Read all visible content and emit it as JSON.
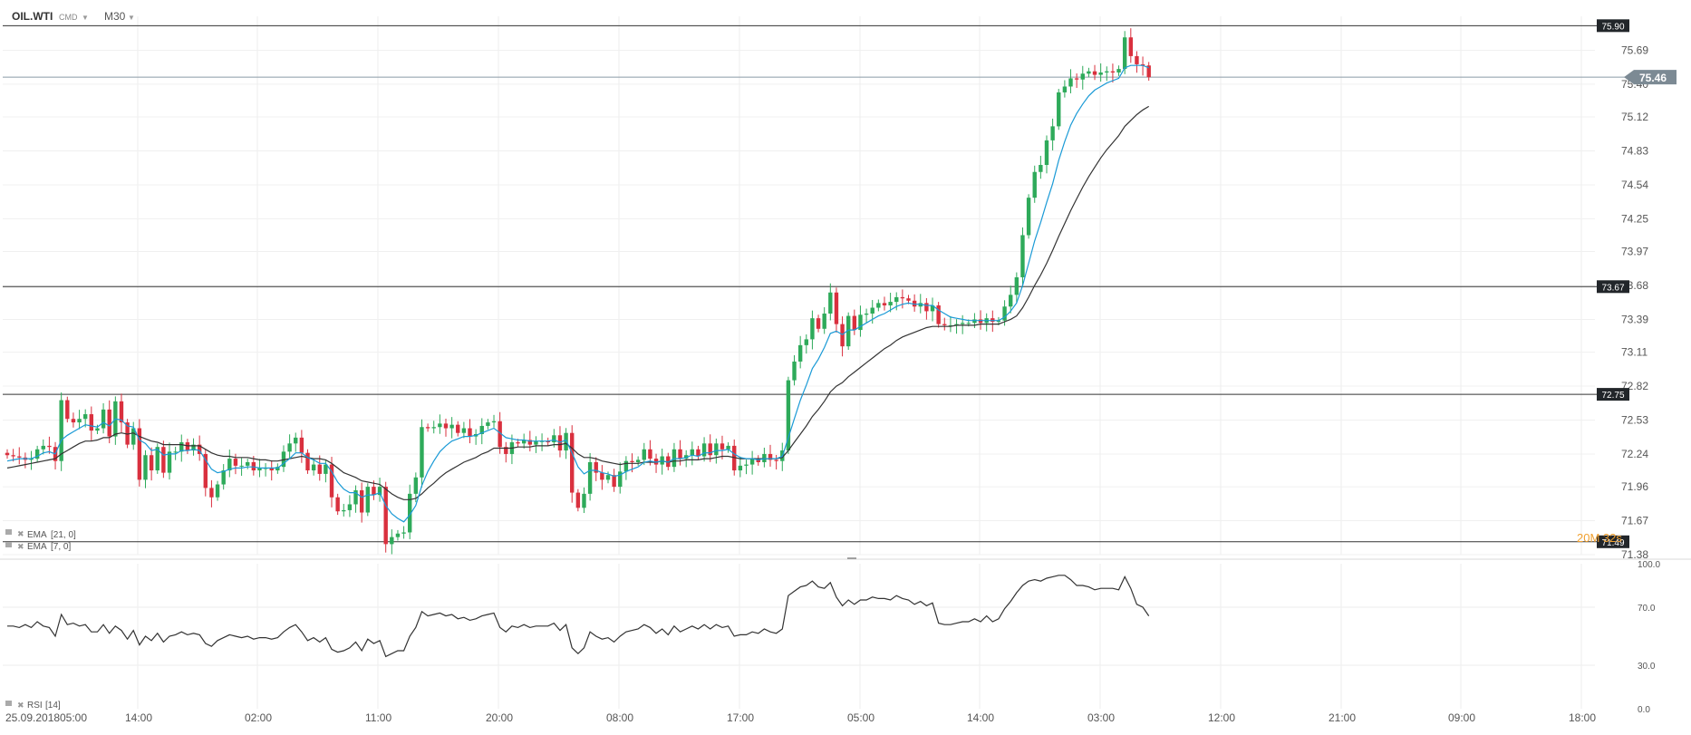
{
  "toolbar": {
    "symbol": "OIL.WTI",
    "instrument_type": "CMD",
    "timeframe": "M30"
  },
  "price_scale": {
    "ticks": [
      "75.69",
      "75.40",
      "75.12",
      "74.83",
      "74.54",
      "74.25",
      "73.97",
      "73.68",
      "73.39",
      "73.11",
      "72.82",
      "72.53",
      "72.24",
      "71.96",
      "71.67",
      "71.38"
    ],
    "min": 71.38,
    "max": 75.98
  },
  "levels": [
    {
      "value": 75.9,
      "label": "75.90"
    },
    {
      "value": 73.67,
      "label": "73.67"
    },
    {
      "value": 72.75,
      "label": "72.75"
    },
    {
      "value": 71.49,
      "label": "71.49"
    }
  ],
  "current_price": {
    "value": 75.46,
    "label": "75.46"
  },
  "countdown": "20M 32s",
  "indicators": [
    {
      "label": "EMA",
      "params": "[21, 0]",
      "color": "#333333"
    },
    {
      "label": "EMA",
      "params": "[7, 0]",
      "color": "#1a9ad6"
    }
  ],
  "rsi": {
    "label": "RSI",
    "params": "[14]",
    "ticks": [
      "100.0",
      "70.0",
      "30.0",
      "0.0"
    ]
  },
  "x_axis": {
    "labels": [
      "25.09.2018",
      "05:00",
      "14:00",
      "02:00",
      "11:00",
      "20:00",
      "08:00",
      "17:00",
      "05:00",
      "14:00",
      "03:00",
      "12:00",
      "21:00",
      "09:00",
      "18:00"
    ]
  },
  "colors": {
    "up": "#2eaa5a",
    "down": "#d9303e",
    "ema21": "#333333",
    "ema7": "#1a9ad6",
    "countdown": "#f0a030"
  },
  "chart_data": {
    "type": "candlestick",
    "ylim": [
      71.38,
      75.98
    ],
    "rsi_ylim": [
      0,
      100
    ],
    "closes": [
      72.23,
      72.22,
      72.21,
      72.19,
      72.2,
      72.28,
      72.31,
      72.3,
      72.18,
      72.7,
      72.54,
      72.51,
      72.54,
      72.58,
      72.44,
      72.46,
      72.62,
      72.39,
      72.69,
      72.51,
      72.32,
      72.46,
      72.02,
      72.23,
      72.1,
      72.3,
      72.08,
      72.26,
      72.26,
      72.34,
      72.27,
      72.32,
      72.24,
      71.95,
      71.87,
      71.98,
      72.1,
      72.2,
      72.14,
      72.14,
      72.17,
      72.1,
      72.12,
      72.12,
      72.1,
      72.13,
      72.26,
      72.33,
      72.38,
      72.25,
      72.1,
      72.15,
      72.07,
      72.15,
      71.87,
      71.75,
      71.76,
      71.81,
      71.93,
      71.74,
      71.96,
      71.89,
      71.96,
      71.47,
      71.53,
      71.56,
      71.57,
      71.9,
      72.04,
      72.47,
      72.46,
      72.47,
      72.5,
      72.46,
      72.49,
      72.42,
      72.46,
      72.39,
      72.41,
      72.48,
      72.51,
      72.52,
      72.3,
      72.24,
      72.34,
      72.33,
      72.36,
      72.32,
      72.35,
      72.35,
      72.34,
      72.4,
      72.27,
      72.42,
      71.91,
      71.78,
      71.9,
      72.17,
      72.08,
      72.02,
      72.06,
      71.96,
      72.09,
      72.18,
      72.17,
      72.19,
      72.28,
      72.2,
      72.15,
      72.22,
      72.13,
      72.28,
      72.2,
      72.23,
      72.28,
      72.22,
      72.33,
      72.23,
      72.33,
      72.28,
      72.31,
      72.1,
      72.14,
      72.15,
      72.2,
      72.17,
      72.24,
      72.19,
      72.18,
      72.27,
      72.87,
      73.03,
      73.17,
      73.22,
      73.4,
      73.31,
      73.44,
      73.62,
      73.35,
      73.16,
      73.42,
      73.3,
      73.43,
      73.44,
      73.49,
      73.53,
      73.51,
      73.54,
      73.58,
      73.57,
      73.55,
      73.5,
      73.53,
      73.46,
      73.51,
      73.35,
      73.34,
      73.34,
      73.35,
      73.36,
      73.36,
      73.39,
      73.36,
      73.4,
      73.37,
      73.38,
      73.5,
      73.6,
      73.75,
      74.11,
      74.43,
      74.65,
      74.71,
      74.92,
      75.04,
      75.33,
      75.38,
      75.45,
      75.44,
      75.49,
      75.51,
      75.48,
      75.5,
      75.51,
      75.5,
      75.53,
      75.8,
      75.64,
      75.57,
      75.56,
      75.46
    ],
    "ema21": [
      72.12,
      72.13,
      72.14,
      72.15,
      72.16,
      72.17,
      72.18,
      72.19,
      72.2,
      72.24,
      72.27,
      72.3,
      72.33,
      72.35,
      72.35,
      72.36,
      72.38,
      72.38,
      72.41,
      72.42,
      72.41,
      72.42,
      72.39,
      72.37,
      72.35,
      72.34,
      72.32,
      72.32,
      72.32,
      72.32,
      72.31,
      72.31,
      72.31,
      72.28,
      72.25,
      72.23,
      72.22,
      72.22,
      72.21,
      72.21,
      72.21,
      72.2,
      72.19,
      72.19,
      72.18,
      72.18,
      72.19,
      72.2,
      72.21,
      72.22,
      72.21,
      72.2,
      72.2,
      72.19,
      72.16,
      72.12,
      72.08,
      72.06,
      72.04,
      72.01,
      72.0,
      71.99,
      71.98,
      71.94,
      71.9,
      71.87,
      71.85,
      71.85,
      71.86,
      71.9,
      71.95,
      71.99,
      72.04,
      72.08,
      72.11,
      72.14,
      72.17,
      72.19,
      72.21,
      72.24,
      72.26,
      72.29,
      72.29,
      72.29,
      72.29,
      72.3,
      72.3,
      72.3,
      72.31,
      72.31,
      72.31,
      72.32,
      72.32,
      72.33,
      72.29,
      72.24,
      72.21,
      72.21,
      72.2,
      72.18,
      72.17,
      72.16,
      72.15,
      72.16,
      72.16,
      72.16,
      72.17,
      72.17,
      72.17,
      72.18,
      72.17,
      72.18,
      72.18,
      72.19,
      72.19,
      72.19,
      72.2,
      72.2,
      72.21,
      72.22,
      72.22,
      72.21,
      72.2,
      72.2,
      72.2,
      72.2,
      72.2,
      72.2,
      72.2,
      72.21,
      72.27,
      72.34,
      72.41,
      72.48,
      72.56,
      72.62,
      72.69,
      72.77,
      72.82,
      72.85,
      72.9,
      72.94,
      72.98,
      73.02,
      73.06,
      73.1,
      73.14,
      73.17,
      73.21,
      73.24,
      73.26,
      73.28,
      73.3,
      73.32,
      73.33,
      73.33,
      73.33,
      73.33,
      73.34,
      73.34,
      73.34,
      73.34,
      73.35,
      73.35,
      73.35,
      73.35,
      73.37,
      73.39,
      73.42,
      73.49,
      73.58,
      73.68,
      73.77,
      73.87,
      73.98,
      74.1,
      74.21,
      74.32,
      74.42,
      74.52,
      74.61,
      74.69,
      74.77,
      74.84,
      74.9,
      74.96,
      75.04,
      75.09,
      75.14,
      75.18,
      75.21
    ],
    "ema7": [
      72.18,
      72.19,
      72.2,
      72.2,
      72.2,
      72.22,
      72.25,
      72.26,
      72.24,
      72.36,
      72.4,
      72.43,
      72.46,
      72.49,
      72.48,
      72.47,
      72.51,
      72.48,
      72.54,
      72.53,
      72.48,
      72.47,
      72.36,
      72.33,
      72.27,
      72.28,
      72.23,
      72.24,
      72.24,
      72.27,
      72.27,
      72.28,
      72.27,
      72.19,
      72.11,
      72.08,
      72.09,
      72.11,
      72.12,
      72.12,
      72.13,
      72.13,
      72.12,
      72.12,
      72.12,
      72.12,
      72.16,
      72.2,
      72.25,
      72.25,
      72.21,
      72.19,
      72.16,
      72.16,
      72.09,
      72.0,
      71.94,
      71.91,
      71.91,
      71.87,
      71.89,
      71.89,
      71.91,
      71.8,
      71.73,
      71.69,
      71.66,
      71.72,
      71.8,
      71.97,
      72.09,
      72.18,
      72.26,
      72.31,
      72.35,
      72.37,
      72.39,
      72.39,
      72.4,
      72.42,
      72.44,
      72.46,
      72.42,
      72.38,
      72.37,
      72.36,
      72.36,
      72.35,
      72.35,
      72.35,
      72.35,
      72.36,
      72.34,
      72.36,
      72.25,
      72.13,
      72.07,
      72.1,
      72.1,
      72.08,
      72.07,
      72.05,
      72.06,
      72.09,
      72.11,
      72.13,
      72.17,
      72.18,
      72.17,
      72.18,
      72.17,
      72.2,
      72.2,
      72.21,
      72.23,
      72.22,
      72.25,
      72.25,
      72.27,
      72.27,
      72.28,
      72.24,
      72.21,
      72.2,
      72.2,
      72.19,
      72.2,
      72.2,
      72.2,
      72.22,
      72.38,
      72.54,
      72.7,
      72.83,
      72.97,
      73.05,
      73.15,
      73.27,
      73.29,
      73.26,
      73.3,
      73.3,
      73.33,
      73.36,
      73.39,
      73.42,
      73.44,
      73.47,
      73.5,
      73.52,
      73.53,
      73.52,
      73.52,
      73.51,
      73.51,
      73.47,
      73.44,
      73.41,
      73.4,
      73.39,
      73.38,
      73.38,
      73.38,
      73.38,
      73.38,
      73.38,
      73.41,
      73.46,
      73.53,
      73.68,
      73.87,
      74.06,
      74.22,
      74.39,
      74.55,
      74.75,
      74.91,
      75.05,
      75.15,
      75.23,
      75.3,
      75.35,
      75.38,
      75.41,
      75.43,
      75.45,
      75.54,
      75.56,
      75.56,
      75.56,
      75.54
    ],
    "rsi": [
      57,
      57,
      56,
      58,
      56,
      60,
      57,
      56,
      50,
      65,
      58,
      59,
      57,
      58,
      53,
      53,
      58,
      52,
      57,
      54,
      48,
      54,
      44,
      50,
      47,
      52,
      46,
      50,
      51,
      53,
      51,
      52,
      51,
      45,
      43,
      47,
      49,
      51,
      50,
      49,
      50,
      48,
      49,
      49,
      48,
      49,
      53,
      56,
      58,
      53,
      47,
      49,
      46,
      49,
      41,
      39,
      40,
      42,
      46,
      40,
      48,
      45,
      47,
      36,
      38,
      40,
      40,
      50,
      56,
      67,
      64,
      65,
      66,
      64,
      65,
      62,
      63,
      61,
      62,
      64,
      65,
      66,
      56,
      53,
      57,
      56,
      58,
      56,
      57,
      57,
      57,
      59,
      54,
      58,
      42,
      38,
      42,
      53,
      50,
      48,
      49,
      46,
      50,
      53,
      54,
      55,
      58,
      56,
      52,
      55,
      51,
      57,
      53,
      55,
      57,
      55,
      58,
      55,
      58,
      56,
      57,
      50,
      51,
      51,
      53,
      52,
      55,
      53,
      52,
      55,
      78,
      81,
      84,
      85,
      88,
      84,
      83,
      87,
      77,
      71,
      75,
      72,
      75,
      75,
      77,
      76,
      76,
      75,
      78,
      76,
      75,
      72,
      74,
      71,
      73,
      59,
      58,
      58,
      59,
      60,
      60,
      62,
      60,
      64,
      60,
      62,
      69,
      74,
      80,
      85,
      88,
      89,
      88,
      90,
      91,
      92,
      92,
      89,
      85,
      85,
      84,
      82,
      83,
      83,
      83,
      82,
      91,
      83,
      72,
      70,
      64
    ]
  }
}
